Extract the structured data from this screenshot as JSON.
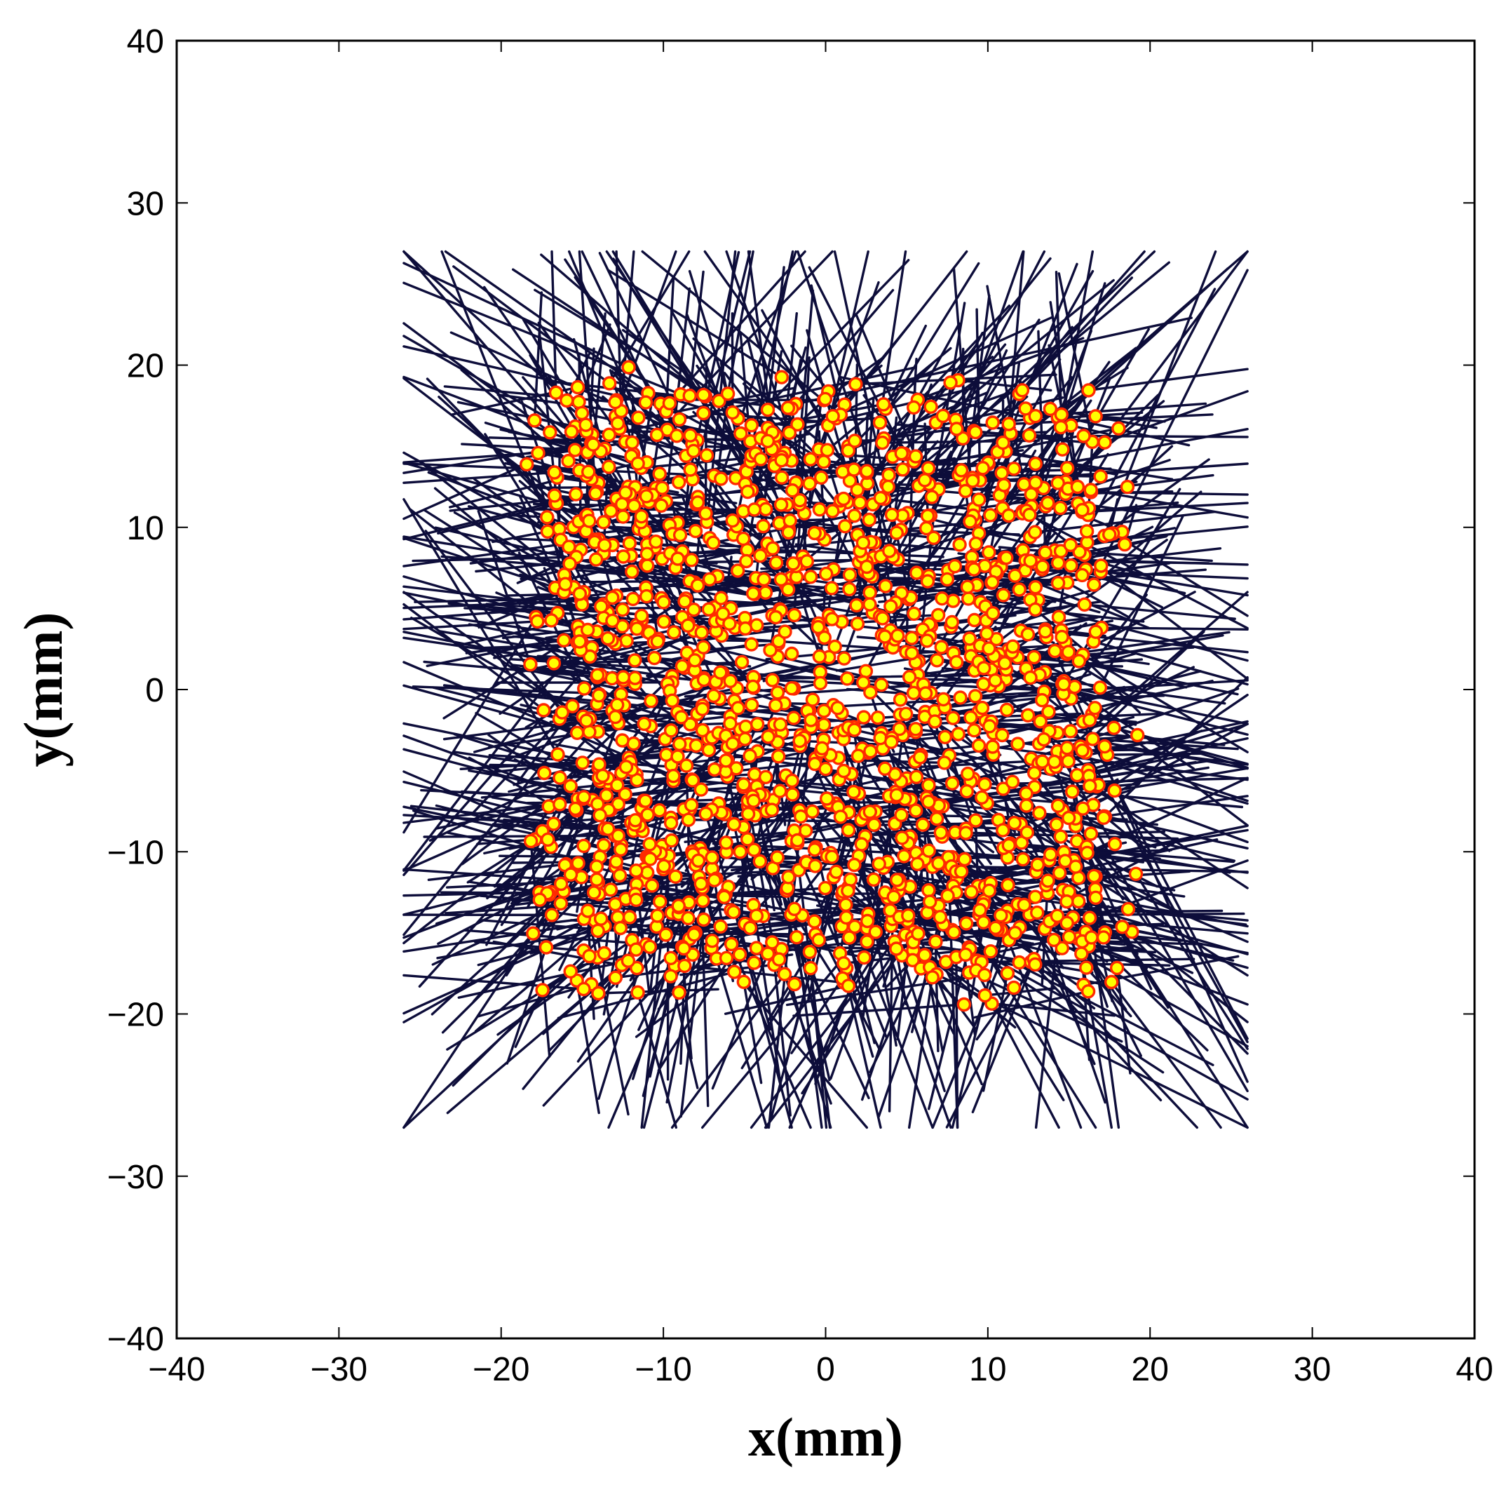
{
  "chart_data": {
    "type": "scatter",
    "title": "",
    "xlabel": "x(mm)",
    "ylabel": "y(mm)",
    "xlim": [
      -40,
      40
    ],
    "ylim": [
      -40,
      40
    ],
    "xticks": [
      -40,
      -30,
      -20,
      -10,
      0,
      10,
      20,
      30,
      40
    ],
    "yticks": [
      -40,
      -30,
      -20,
      -10,
      0,
      10,
      20,
      30,
      40
    ],
    "xtick_labels": [
      "−40",
      "−30",
      "−20",
      "−10",
      "0",
      "10",
      "20",
      "30",
      "40"
    ],
    "ytick_labels": [
      "−40",
      "−30",
      "−20",
      "−10",
      "0",
      "10",
      "20",
      "30",
      "40"
    ],
    "grid": false,
    "legend": "none",
    "region": {
      "x": [
        -26,
        26
      ],
      "y": [
        -27,
        27
      ]
    },
    "marker_count_estimate": 1500,
    "line_count_estimate": 1500,
    "colors": {
      "line": "#0d0d3a",
      "marker_face": "#ffff00",
      "marker_edge": "#ff2a00",
      "axes": "#000000"
    }
  }
}
